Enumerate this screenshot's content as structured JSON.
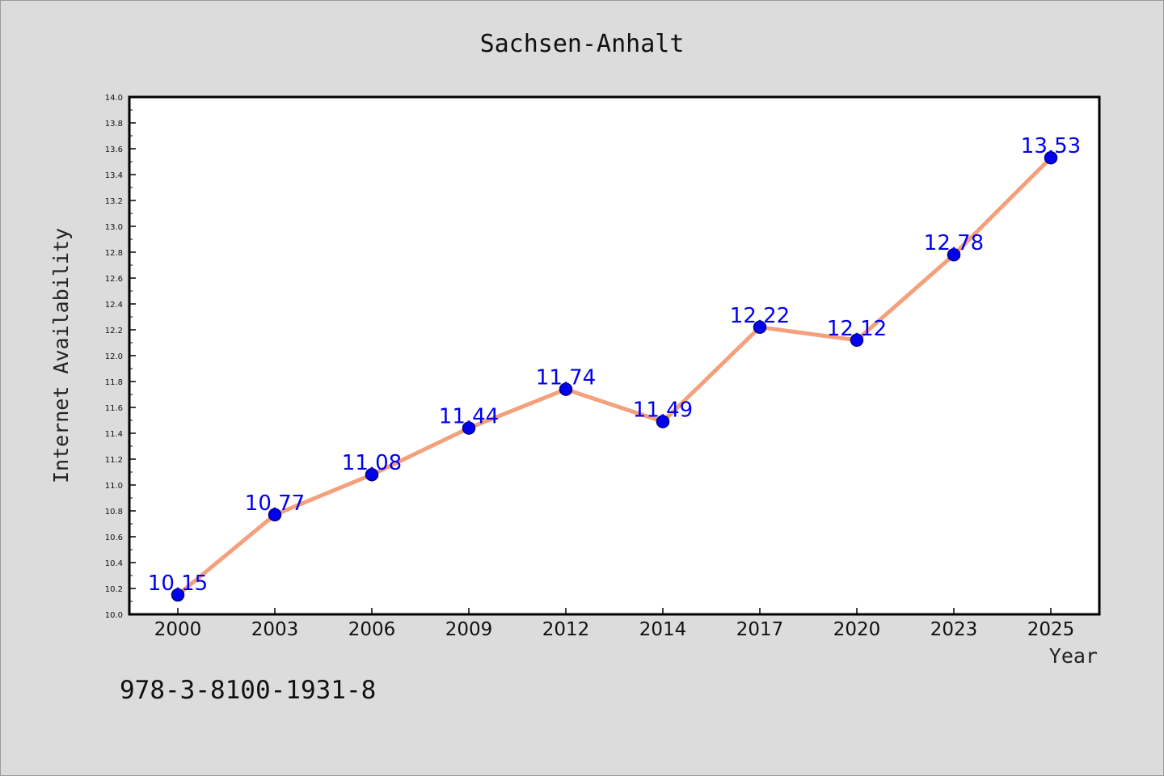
{
  "colors": {
    "background": "#dcdcdc",
    "plot_background": "#ffffff",
    "line": "#f4a07c",
    "marker": "#0000ee",
    "marker_edge": "#000080",
    "data_label": "#0000ee"
  },
  "footer": {
    "text": "978-3-8100-1931-8"
  },
  "chart_data": {
    "type": "line",
    "title": "Sachsen-Anhalt",
    "xlabel": "Year",
    "ylabel": "Internet Availability",
    "categories": [
      "2000",
      "2003",
      "2006",
      "2009",
      "2012",
      "2014",
      "2017",
      "2020",
      "2023",
      "2025"
    ],
    "series": [
      {
        "values": [
          10.15,
          10.77,
          11.08,
          11.44,
          11.74,
          11.49,
          12.22,
          12.12,
          12.78,
          13.53
        ],
        "labels": [
          "10.15",
          "10.77",
          "11.08",
          "11.44",
          "11.74",
          "11.49",
          "12.22",
          "12.12",
          "12.78",
          "13.53"
        ]
      }
    ],
    "ylim": [
      10.0,
      14.0
    ],
    "yticks": [
      "10.0",
      "10.2",
      "10.4",
      "10.6",
      "10.8",
      "11.0",
      "11.2",
      "11.4",
      "11.6",
      "11.8",
      "12.0",
      "12.2",
      "12.4",
      "12.6",
      "12.8",
      "13.0",
      "13.2",
      "13.4",
      "13.6",
      "13.8",
      "14.0"
    ],
    "grid": false,
    "legend": "none",
    "markers": "circle"
  }
}
